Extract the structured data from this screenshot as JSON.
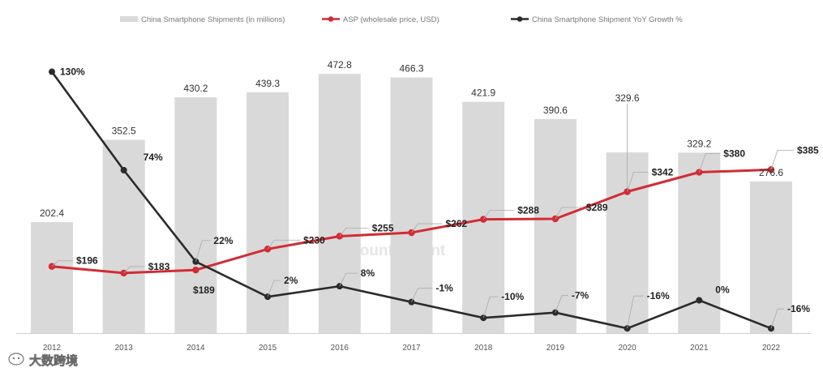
{
  "chart_data": {
    "type": "bar",
    "title": "",
    "xlabel": "",
    "ylabel": "",
    "categories": [
      "2012",
      "2013",
      "2014",
      "2015",
      "2016",
      "2017",
      "2018",
      "2019",
      "2020",
      "2021",
      "2022"
    ],
    "series": [
      {
        "name": "China Smartphone Shipments (in millions)",
        "type": "bar",
        "color": "#d9d9d9",
        "values": [
          202.4,
          352.5,
          430.2,
          439.3,
          472.8,
          466.3,
          421.9,
          390.6,
          329.6,
          329.2,
          276.6
        ],
        "labels": [
          "202.4",
          "352.5",
          "430.2",
          "439.3",
          "472.8",
          "466.3",
          "421.9",
          "390.6",
          "329.6",
          "329.2",
          "276.6"
        ]
      },
      {
        "name": "ASP (wholesale price, USD)",
        "type": "line",
        "color": "#d12c35",
        "values": [
          196,
          183,
          189,
          230,
          255,
          262,
          288,
          289,
          342,
          380,
          385
        ],
        "labels": [
          "$196",
          "$183",
          "$189",
          "$230",
          "$255",
          "$262",
          "$288",
          "$289",
          "$342",
          "$380",
          "$385"
        ]
      },
      {
        "name": "China Smartphone Shipment YoY Growth %",
        "type": "line",
        "color": "#2b2b2b",
        "values": [
          130,
          74,
          22,
          2,
          8,
          -1,
          -10,
          -7,
          -16,
          0,
          -16
        ],
        "labels": [
          "130%",
          "74%",
          "22%",
          "2%",
          "8%",
          "-1%",
          "-10%",
          "-7%",
          "-16%",
          "0%",
          "-16%"
        ]
      }
    ],
    "legend": "top"
  },
  "watermark": "Counterpoint",
  "corner_watermark": "大数跨境"
}
